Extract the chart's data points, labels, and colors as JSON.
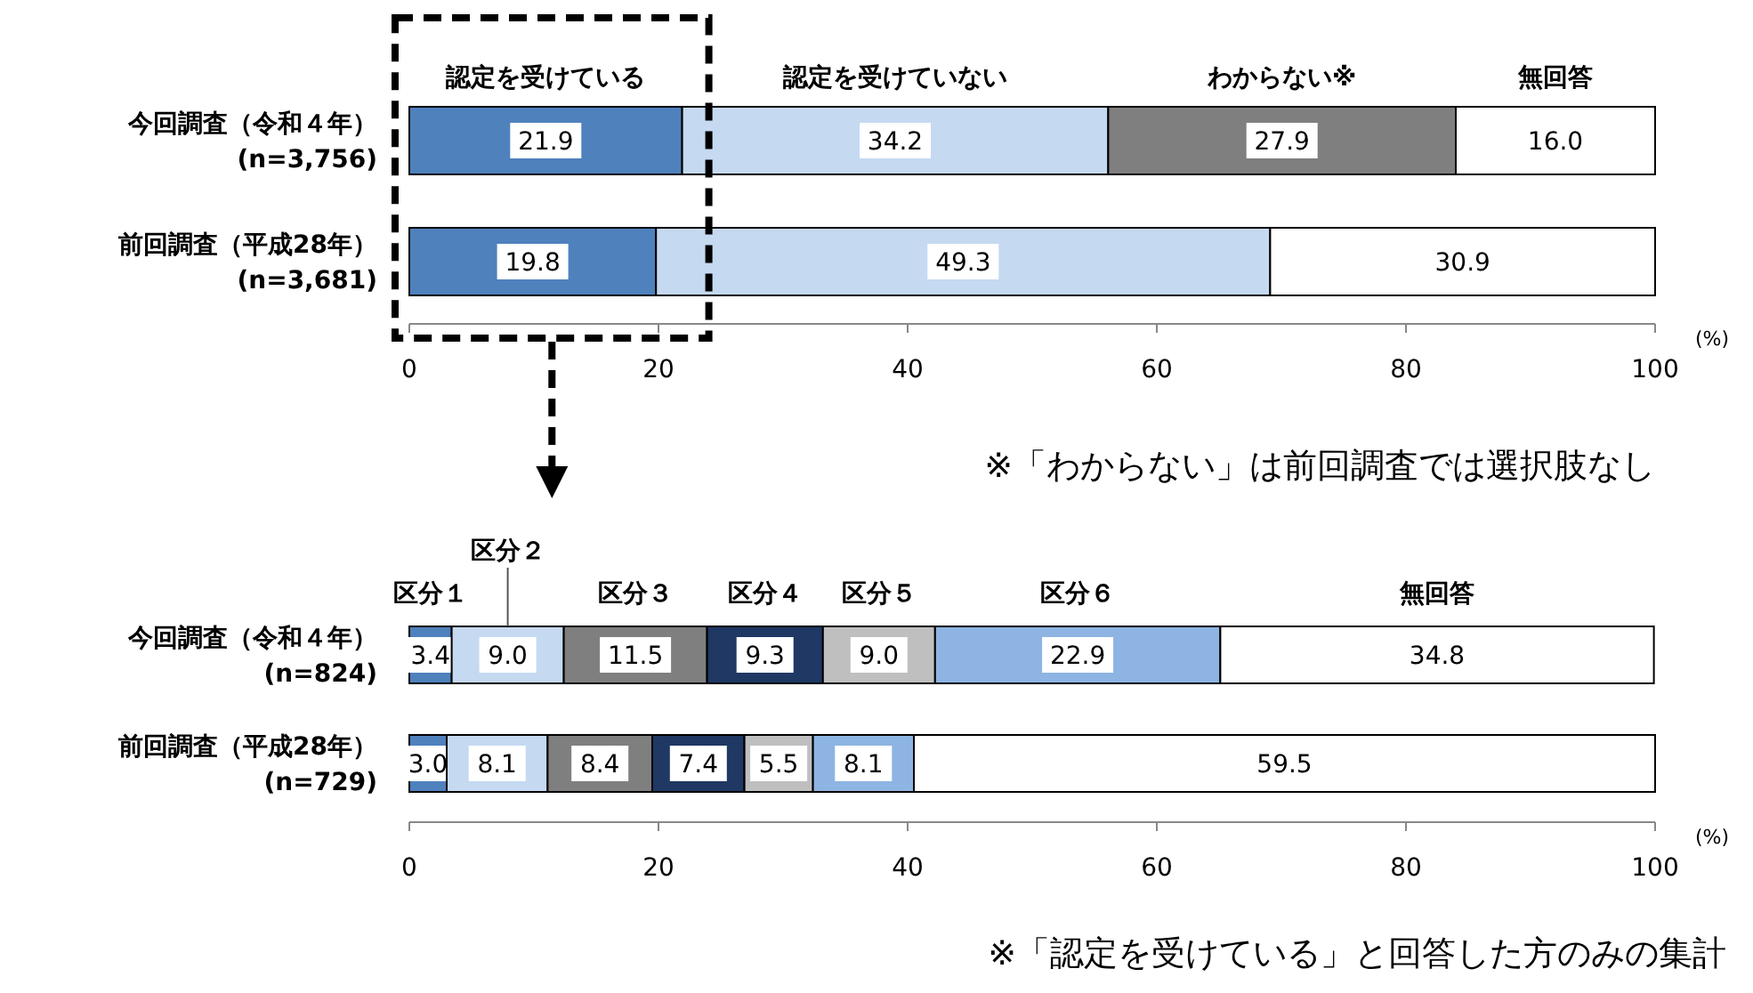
{
  "chart_data": [
    {
      "type": "bar",
      "orientation": "horizontal",
      "stacked": true,
      "categories": [
        "今回調査（令和４年）\n(n=3,756)",
        "前回調査（平成28年）\n(n=3,681)"
      ],
      "series": [
        {
          "name": "認定を受けている",
          "color": "#4f81bd",
          "values": [
            21.9,
            19.8
          ],
          "value_labels": [
            "21.9",
            "19.8"
          ]
        },
        {
          "name": "認定を受けていない",
          "color": "#c5d9f1",
          "values": [
            34.2,
            49.3
          ],
          "value_labels": [
            "34.2",
            "49.3"
          ]
        },
        {
          "name": "わからない※",
          "color": "#7f7f7f",
          "values": [
            27.9,
            null
          ],
          "value_labels": [
            "27.9",
            null
          ]
        },
        {
          "name": "無回答",
          "color": "#ffffff",
          "values": [
            16.0,
            30.9
          ],
          "value_labels": [
            "16.0",
            "30.9"
          ]
        }
      ],
      "xlim": [
        0,
        100
      ],
      "xticks": [
        0,
        20,
        40,
        60,
        80,
        100
      ],
      "xlabel": "(%)",
      "annotations": [
        "※「わからない」は前回調査では選択肢なし"
      ]
    },
    {
      "type": "bar",
      "orientation": "horizontal",
      "stacked": true,
      "categories": [
        "今回調査（令和４年）\n(n=824)",
        "前回調査（平成28年）\n(n=729)"
      ],
      "series": [
        {
          "name": "区分１",
          "color": "#4f81bd",
          "values": [
            3.4,
            3.0
          ],
          "value_labels": [
            "3.4",
            "3.0"
          ]
        },
        {
          "name": "区分２",
          "color": "#c5d9f1",
          "values": [
            9.0,
            8.1
          ],
          "value_labels": [
            "9.0",
            "8.1"
          ]
        },
        {
          "name": "区分３",
          "color": "#7f7f7f",
          "values": [
            11.5,
            8.4
          ],
          "value_labels": [
            "11.5",
            "8.4"
          ]
        },
        {
          "name": "区分４",
          "color": "#1f3864",
          "values": [
            9.3,
            7.4
          ],
          "value_labels": [
            "9.3",
            "7.4"
          ]
        },
        {
          "name": "区分５",
          "color": "#bfbfbf",
          "values": [
            9.0,
            5.5
          ],
          "value_labels": [
            "9.0",
            "5.5"
          ]
        },
        {
          "name": "区分６",
          "color": "#8db4e2",
          "values": [
            22.9,
            8.1
          ],
          "value_labels": [
            "22.9",
            "8.1"
          ]
        },
        {
          "name": "無回答",
          "color": "#ffffff",
          "values": [
            34.8,
            59.5
          ],
          "value_labels": [
            "34.8",
            "59.5"
          ]
        }
      ],
      "xlim": [
        0,
        100
      ],
      "xticks": [
        0,
        20,
        40,
        60,
        80,
        100
      ],
      "xlabel": "(%)",
      "annotations": [
        "※「認定を受けている」と回答した方のみの集計"
      ]
    }
  ]
}
